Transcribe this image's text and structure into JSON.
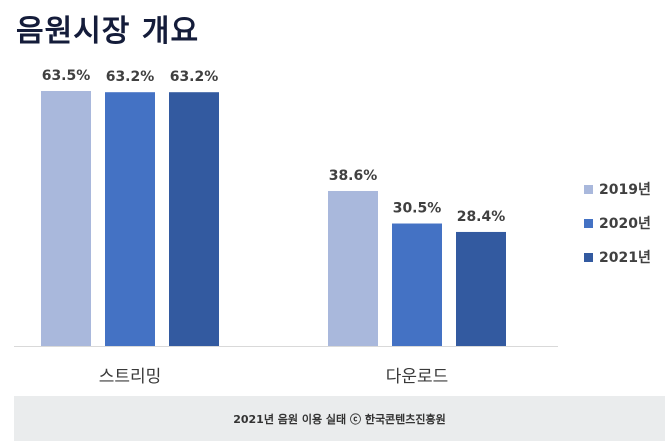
{
  "title": "음원시장 개요",
  "source": "2021년 음원 이용 실태 ⓒ 한국콘텐츠진흥원",
  "chart_data": {
    "type": "bar",
    "categories": [
      "스트리밍",
      "다운로드"
    ],
    "series": [
      {
        "name": "2019년",
        "values": [
          63.5,
          38.6
        ],
        "labels": [
          "63.5%",
          "38.6%"
        ],
        "color": "#a9b8dc"
      },
      {
        "name": "2020년",
        "values": [
          63.2,
          30.5
        ],
        "labels": [
          "63.2%",
          "30.5%"
        ],
        "color": "#4472c4"
      },
      {
        "name": "2021년",
        "values": [
          63.2,
          28.4
        ],
        "labels": [
          "63.2%",
          "28.4%"
        ],
        "color": "#335aa0"
      }
    ],
    "ylim": [
      0,
      63.5
    ],
    "legend_position": "right",
    "grid": false
  }
}
